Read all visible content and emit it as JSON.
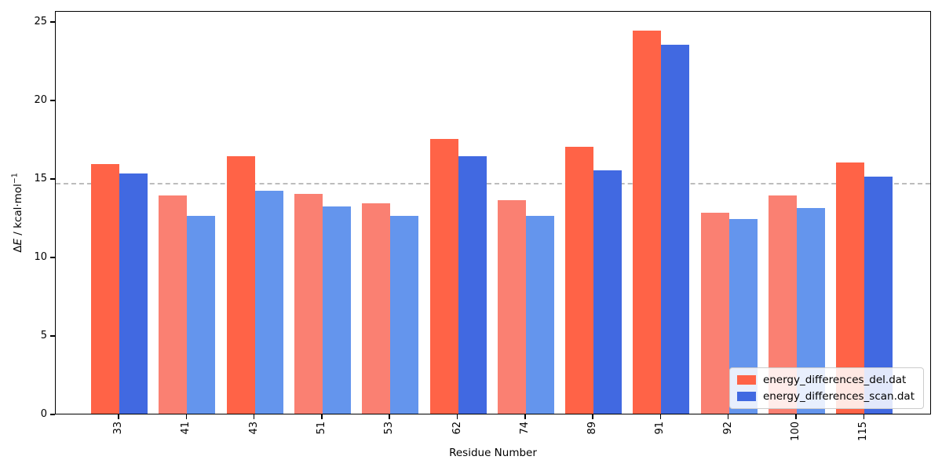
{
  "chart_data": {
    "type": "bar",
    "xlabel": "Residue Number",
    "ylabel": "ΔE / kcal·mol⁻¹",
    "ylabel_parts": {
      "prefix": "Δ",
      "italic_var": "E",
      "unit": " / kcal·mol",
      "exponent": "−1"
    },
    "categories": [
      "33",
      "41",
      "43",
      "51",
      "53",
      "62",
      "74",
      "89",
      "91",
      "92",
      "100",
      "115"
    ],
    "series": [
      {
        "name": "energy_differences_del.dat",
        "color_strong": "#ff6347",
        "color_muted": "#fa8072",
        "values": [
          15.9,
          13.9,
          16.4,
          14.0,
          13.4,
          17.5,
          13.6,
          17.0,
          24.4,
          12.8,
          13.9,
          16.0
        ]
      },
      {
        "name": "energy_differences_scan.dat",
        "color_strong": "#4169e1",
        "color_muted": "#6495ed",
        "values": [
          15.3,
          12.6,
          14.2,
          13.2,
          12.6,
          16.4,
          12.6,
          15.5,
          23.5,
          12.4,
          13.1,
          15.1
        ]
      }
    ],
    "threshold_line": {
      "value": 14.8,
      "color": "#bdbdbd",
      "style": "dashed"
    },
    "highlight_rule": "bars with value >= threshold use strong color, others muted",
    "yticks": [
      0,
      5,
      10,
      15,
      20,
      25
    ],
    "ylim": [
      0,
      25.7
    ],
    "xtick_rotation_deg": 90,
    "legend_position": "lower right",
    "grid": false
  }
}
